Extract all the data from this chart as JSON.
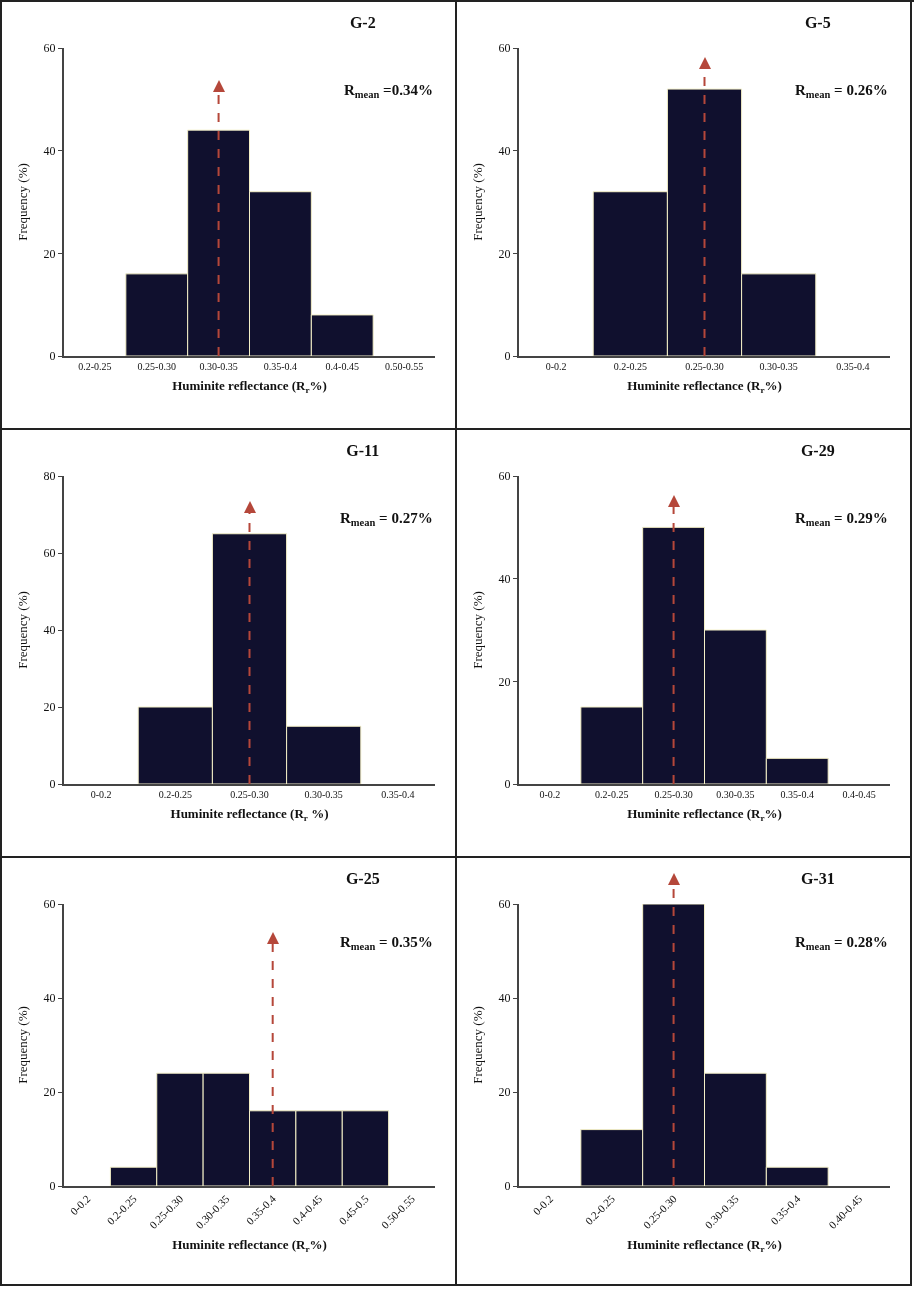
{
  "chart_data": [
    {
      "type": "bar",
      "title": "G-2",
      "annotations": [
        "R$_{mean}$ =0.34%"
      ],
      "xlabel": "Huminite reflectance (R$_{r}$%)",
      "ylabel": "Frequency (%)",
      "categories": [
        "0.2-0.25",
        "0.25-0.30",
        "0.30-0.35",
        "0.35-0.4",
        "0.4-0.45",
        "0.50-0.55"
      ],
      "values": [
        0,
        16,
        44,
        32,
        8,
        0
      ],
      "color": "#10102e",
      "ylim": [
        0,
        60
      ],
      "yticks": [
        0,
        20,
        40,
        60
      ],
      "grid": false,
      "ref_lines": [
        {
          "axis": "x",
          "value": "0.30-0.35",
          "color": "#b5473a",
          "line_style": "dashed"
        }
      ]
    },
    {
      "type": "bar",
      "title": "G-5",
      "annotations": [
        "R$_{mean}$ = 0.26%"
      ],
      "xlabel": "Huminite reflectance (R$_{r}$%)",
      "ylabel": "Frequency (%)",
      "categories": [
        "0-0.2",
        "0.2-0.25",
        "0.25-0.30",
        "0.30-0.35",
        "0.35-0.4"
      ],
      "values": [
        0,
        32,
        52,
        16,
        0
      ],
      "color": "#10102e",
      "ylim": [
        0,
        60
      ],
      "yticks": [
        0,
        20,
        40,
        60
      ],
      "grid": false,
      "ref_lines": [
        {
          "axis": "x",
          "value": "0.25-0.30",
          "color": "#b5473a",
          "line_style": "dashed"
        }
      ]
    },
    {
      "type": "bar",
      "title": "G-11",
      "annotations": [
        "R$_{mean}$ = 0.27%"
      ],
      "xlabel": "Huminite reflectance (R$_{r}$ %)",
      "ylabel": "Frequency (%)",
      "categories": [
        "0-0.2",
        "0.2-0.25",
        "0.25-0.30",
        "0.30-0.35",
        "0.35-0.4"
      ],
      "values": [
        0,
        20,
        65,
        15,
        0
      ],
      "color": "#10102e",
      "ylim": [
        0,
        80
      ],
      "yticks": [
        0,
        20,
        40,
        60,
        80
      ],
      "grid": false,
      "ref_lines": [
        {
          "axis": "x",
          "value": "0.25-0.30",
          "color": "#b5473a",
          "line_style": "dashed"
        }
      ]
    },
    {
      "type": "bar",
      "title": "G-29",
      "annotations": [
        "R$_{mean}$ = 0.29%"
      ],
      "xlabel": "Huminite reflectance (R$_{r}$%)",
      "ylabel": "Frequency (%)",
      "categories": [
        "0-0.2",
        "0.2-0.25",
        "0.25-0.30",
        "0.30-0.35",
        "0.35-0.4",
        "0.4-0.45"
      ],
      "values": [
        0,
        15,
        50,
        30,
        5,
        0
      ],
      "color": "#10102e",
      "ylim": [
        0,
        60
      ],
      "yticks": [
        0,
        20,
        40,
        60
      ],
      "grid": false,
      "ref_lines": [
        {
          "axis": "x",
          "value": "0.25-0.30",
          "color": "#b5473a",
          "line_style": "dashed"
        }
      ]
    },
    {
      "type": "bar",
      "title": "G-25",
      "annotations": [
        "R$_{mean}$ = 0.35%"
      ],
      "xlabel": "Huminite reflectance (R$_{r}$%)",
      "ylabel": "Frequency (%)",
      "categories": [
        "0-0.2",
        "0.2-0.25",
        "0.25-0.30",
        "0.30-0.35",
        "0.35-0.4",
        "0.4-0.45",
        "0.45-0.5",
        "0.50-0.55"
      ],
      "values": [
        0,
        4,
        24,
        24,
        16,
        16,
        16,
        0
      ],
      "color": "#10102e",
      "ylim": [
        0,
        60
      ],
      "yticks": [
        0,
        20,
        40,
        60
      ],
      "grid": false,
      "ref_lines": [
        {
          "axis": "x",
          "value": "0.35-0.4",
          "color": "#b5473a",
          "line_style": "dashed"
        }
      ]
    },
    {
      "type": "bar",
      "title": "G-31",
      "annotations": [
        "R$_{mean}$ = 0.28%"
      ],
      "xlabel": "Huminite reflectance (R$_{r}$%)",
      "ylabel": "Frequency (%)",
      "categories": [
        "0-0.2",
        "0.2-0.25",
        "0.25-0.30",
        "0.30-0.35",
        "0.35-0.4",
        "0.40-0.45"
      ],
      "values": [
        0,
        12,
        60,
        24,
        4,
        0
      ],
      "color": "#10102e",
      "ylim": [
        0,
        60
      ],
      "yticks": [
        0,
        20,
        40,
        60
      ],
      "grid": false,
      "ref_lines": [
        {
          "axis": "x",
          "value": "0.25-0.30",
          "color": "#b5473a",
          "line_style": "dashed"
        }
      ]
    }
  ]
}
